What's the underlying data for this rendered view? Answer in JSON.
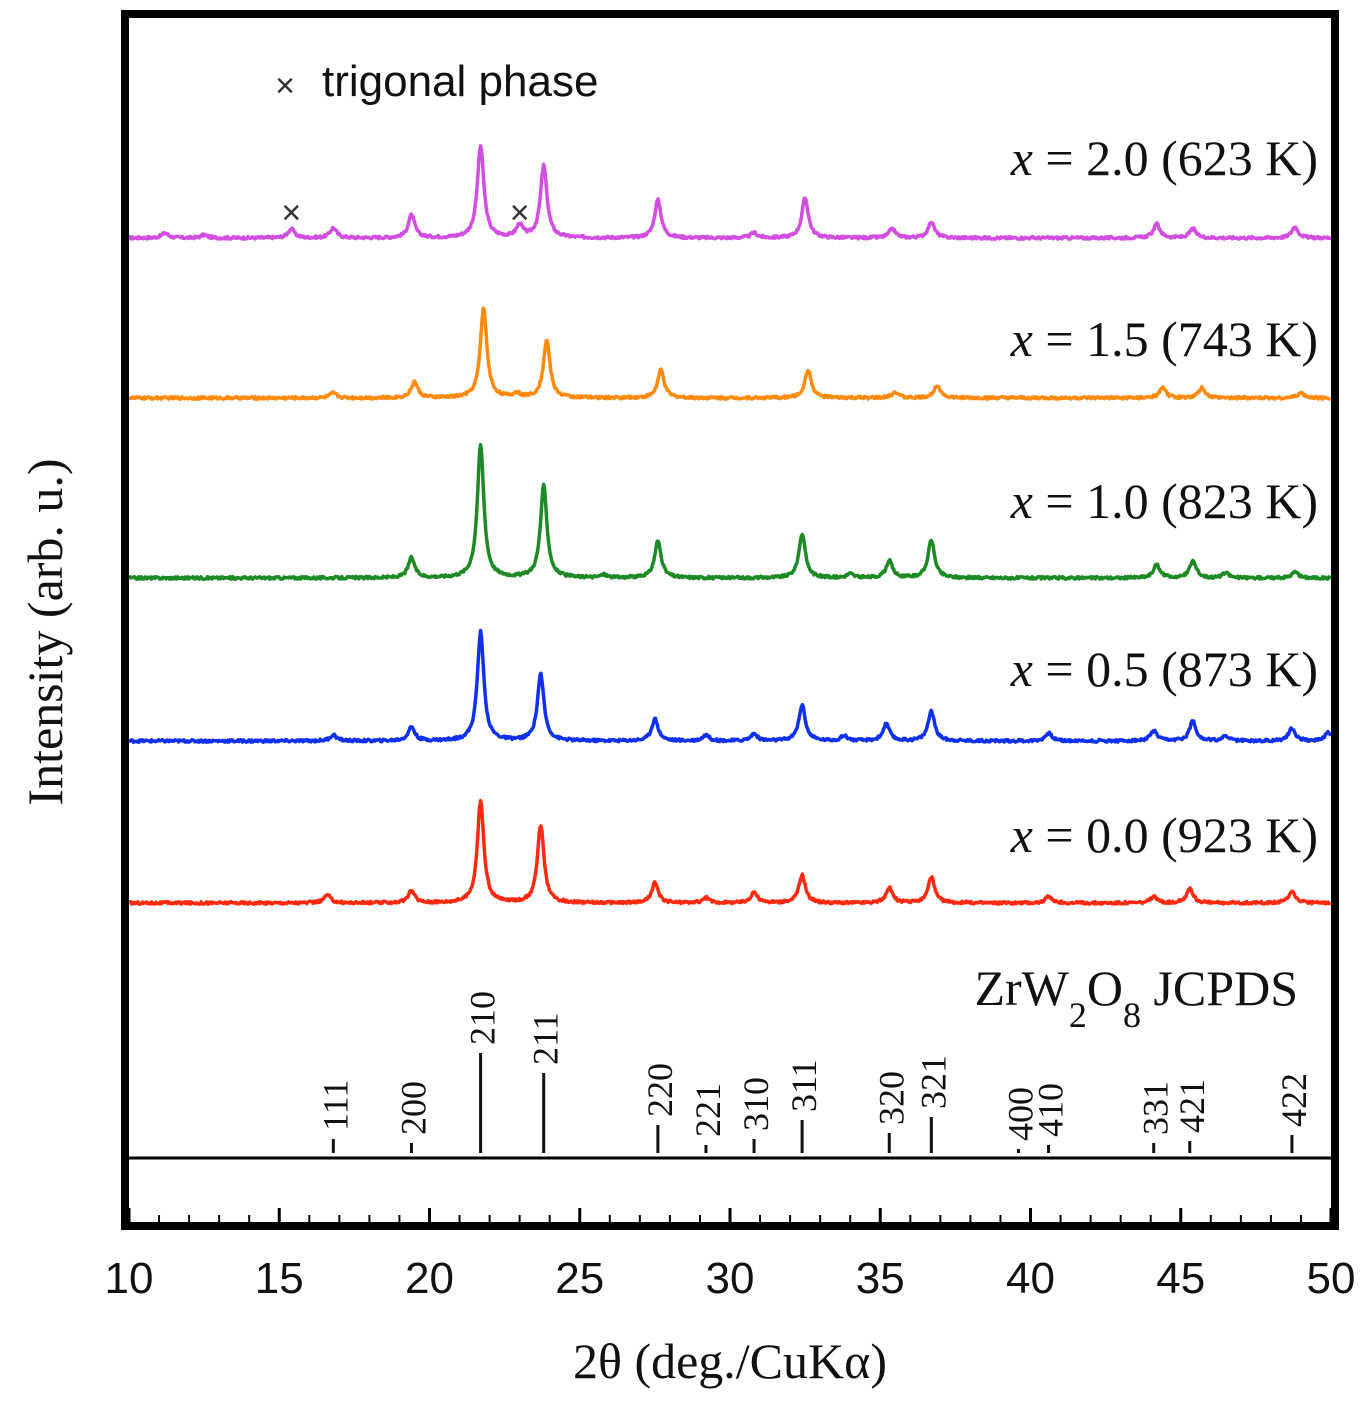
{
  "chart_data": {
    "type": "line",
    "title": "",
    "xlabel": "2θ (deg./CuKα)",
    "ylabel": "Intensity (arb. u.)",
    "xlim": [
      10,
      50
    ],
    "xticks": [
      10,
      15,
      20,
      25,
      30,
      35,
      40,
      45,
      50
    ],
    "grid": false,
    "legend_marker": {
      "symbol": "×",
      "text": "trigonal phase"
    },
    "trigonal_markers_x": [
      15.4,
      23.0
    ],
    "series": [
      {
        "name": "x = 2.0 (623 K)",
        "label_var": "x",
        "label_rest": " = 2.0 (623 K)",
        "color": "#d24ee0",
        "peaks": [
          {
            "x": 11.2,
            "h": 5
          },
          {
            "x": 12.5,
            "h": 3
          },
          {
            "x": 15.4,
            "h": 9
          },
          {
            "x": 16.8,
            "h": 10
          },
          {
            "x": 19.4,
            "h": 23
          },
          {
            "x": 21.7,
            "h": 92
          },
          {
            "x": 23.0,
            "h": 12
          },
          {
            "x": 23.8,
            "h": 72
          },
          {
            "x": 27.6,
            "h": 38
          },
          {
            "x": 30.8,
            "h": 5
          },
          {
            "x": 32.5,
            "h": 40
          },
          {
            "x": 35.4,
            "h": 9
          },
          {
            "x": 36.7,
            "h": 16
          },
          {
            "x": 44.2,
            "h": 14
          },
          {
            "x": 45.4,
            "h": 9
          },
          {
            "x": 48.8,
            "h": 11
          }
        ]
      },
      {
        "name": "x = 1.5 (743 K)",
        "label_var": "x",
        "label_rest": " = 1.5 (743 K)",
        "color": "#ff8a10",
        "peaks": [
          {
            "x": 16.8,
            "h": 5
          },
          {
            "x": 19.5,
            "h": 16
          },
          {
            "x": 21.8,
            "h": 90
          },
          {
            "x": 22.9,
            "h": 4
          },
          {
            "x": 23.9,
            "h": 58
          },
          {
            "x": 27.7,
            "h": 28
          },
          {
            "x": 32.6,
            "h": 28
          },
          {
            "x": 35.5,
            "h": 6
          },
          {
            "x": 36.9,
            "h": 13
          },
          {
            "x": 44.4,
            "h": 10
          },
          {
            "x": 45.7,
            "h": 10
          },
          {
            "x": 49.0,
            "h": 5
          }
        ]
      },
      {
        "name": "x = 1.0 (823 K)",
        "label_var": "x",
        "label_rest": " = 1.0 (823 K)",
        "color": "#1e8a25",
        "peaks": [
          {
            "x": 19.4,
            "h": 20
          },
          {
            "x": 21.7,
            "h": 133
          },
          {
            "x": 23.8,
            "h": 92
          },
          {
            "x": 25.8,
            "h": 3
          },
          {
            "x": 27.6,
            "h": 37
          },
          {
            "x": 32.4,
            "h": 44
          },
          {
            "x": 34.0,
            "h": 4
          },
          {
            "x": 35.3,
            "h": 17
          },
          {
            "x": 36.7,
            "h": 38
          },
          {
            "x": 44.2,
            "h": 13
          },
          {
            "x": 45.4,
            "h": 17
          },
          {
            "x": 46.5,
            "h": 5
          },
          {
            "x": 48.8,
            "h": 6
          }
        ]
      },
      {
        "name": "x = 0.5 (873 K)",
        "label_var": "x",
        "label_rest": " = 0.5 (873 K)",
        "color": "#1030f0",
        "peaks": [
          {
            "x": 16.8,
            "h": 6
          },
          {
            "x": 19.4,
            "h": 14
          },
          {
            "x": 21.7,
            "h": 109
          },
          {
            "x": 23.7,
            "h": 67
          },
          {
            "x": 27.5,
            "h": 22
          },
          {
            "x": 29.2,
            "h": 6
          },
          {
            "x": 30.8,
            "h": 7
          },
          {
            "x": 32.4,
            "h": 36
          },
          {
            "x": 33.8,
            "h": 5
          },
          {
            "x": 35.2,
            "h": 17
          },
          {
            "x": 36.7,
            "h": 30
          },
          {
            "x": 40.6,
            "h": 8
          },
          {
            "x": 44.1,
            "h": 10
          },
          {
            "x": 45.4,
            "h": 20
          },
          {
            "x": 46.5,
            "h": 5
          },
          {
            "x": 48.7,
            "h": 13
          },
          {
            "x": 49.9,
            "h": 8
          }
        ]
      },
      {
        "name": "x = 0.0 (923 K)",
        "label_var": "x",
        "label_rest": " = 0.0 (923 K)",
        "color": "#ff2a10",
        "peaks": [
          {
            "x": 16.6,
            "h": 8
          },
          {
            "x": 19.4,
            "h": 12
          },
          {
            "x": 21.7,
            "h": 102
          },
          {
            "x": 23.7,
            "h": 78
          },
          {
            "x": 27.5,
            "h": 20
          },
          {
            "x": 29.2,
            "h": 5
          },
          {
            "x": 30.8,
            "h": 11
          },
          {
            "x": 32.4,
            "h": 28
          },
          {
            "x": 35.3,
            "h": 15
          },
          {
            "x": 36.7,
            "h": 26
          },
          {
            "x": 40.6,
            "h": 6
          },
          {
            "x": 44.1,
            "h": 6
          },
          {
            "x": 45.3,
            "h": 15
          },
          {
            "x": 48.7,
            "h": 12
          }
        ]
      }
    ],
    "reference": {
      "name_main": "ZrW",
      "name_sub1": "2",
      "name_mid": "O",
      "name_sub2": "8",
      "name_rest": " JCPDS",
      "lines": [
        {
          "x": 16.8,
          "h": 14,
          "hkl": "111"
        },
        {
          "x": 19.4,
          "h": 10,
          "hkl": "200"
        },
        {
          "x": 21.7,
          "h": 100,
          "hkl": "210"
        },
        {
          "x": 23.8,
          "h": 80,
          "hkl": "211"
        },
        {
          "x": 27.6,
          "h": 28,
          "hkl": "220"
        },
        {
          "x": 29.2,
          "h": 8,
          "hkl": "221"
        },
        {
          "x": 30.8,
          "h": 14,
          "hkl": "310"
        },
        {
          "x": 32.4,
          "h": 33,
          "hkl": "311"
        },
        {
          "x": 35.3,
          "h": 20,
          "hkl": "320"
        },
        {
          "x": 36.7,
          "h": 36,
          "hkl": "321"
        },
        {
          "x": 39.6,
          "h": 4,
          "hkl": "400"
        },
        {
          "x": 40.6,
          "h": 8,
          "hkl": "410"
        },
        {
          "x": 44.1,
          "h": 10,
          "hkl": "331"
        },
        {
          "x": 45.3,
          "h": 12,
          "hkl": "421"
        },
        {
          "x": 48.7,
          "h": 18,
          "hkl": "422"
        }
      ]
    }
  }
}
